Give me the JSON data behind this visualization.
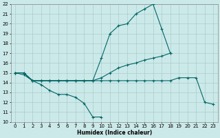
{
  "xlabel": "Humidex (Indice chaleur)",
  "bg_color": "#cce9e9",
  "grid_color": "#aacccc",
  "line_color": "#006666",
  "xlim": [
    -0.5,
    23.5
  ],
  "ylim": [
    10,
    22
  ],
  "xticks": [
    0,
    1,
    2,
    3,
    4,
    5,
    6,
    7,
    8,
    9,
    10,
    11,
    12,
    13,
    14,
    15,
    16,
    17,
    18,
    19,
    20,
    21,
    22,
    23
  ],
  "yticks": [
    10,
    11,
    12,
    13,
    14,
    15,
    16,
    17,
    18,
    19,
    20,
    21,
    22
  ],
  "lines": [
    {
      "x": [
        0,
        1,
        2,
        3,
        4,
        5,
        6,
        7,
        8,
        9,
        10
      ],
      "y": [
        15.0,
        14.8,
        14.2,
        13.8,
        13.2,
        12.8,
        12.8,
        12.5,
        11.9,
        10.5,
        10.5
      ]
    },
    {
      "x": [
        0,
        1,
        2,
        3,
        4,
        5,
        6,
        7,
        8,
        9,
        10,
        11,
        12,
        13,
        14,
        15,
        16,
        17,
        18,
        19,
        20,
        21,
        22,
        23
      ],
      "y": [
        15.0,
        15.0,
        14.2,
        14.2,
        14.2,
        14.2,
        14.2,
        14.2,
        14.2,
        14.2,
        14.2,
        14.2,
        14.2,
        14.2,
        14.2,
        14.2,
        14.2,
        14.2,
        14.2,
        14.5,
        14.5,
        14.5,
        12.0,
        11.8
      ]
    },
    {
      "x": [
        0,
        1,
        2,
        3,
        4,
        5,
        6,
        7,
        8,
        9,
        10,
        11,
        12,
        13,
        14,
        15,
        16,
        17,
        18
      ],
      "y": [
        15.0,
        15.0,
        14.2,
        14.2,
        14.2,
        14.2,
        14.2,
        14.2,
        14.2,
        14.2,
        14.5,
        15.0,
        15.5,
        15.8,
        16.0,
        16.3,
        16.5,
        16.7,
        17.0
      ]
    },
    {
      "x": [
        0,
        1,
        2,
        3,
        4,
        5,
        6,
        7,
        8,
        9,
        10,
        11,
        12,
        13,
        14,
        15,
        16,
        17,
        18
      ],
      "y": [
        15.0,
        15.0,
        14.2,
        14.2,
        14.2,
        14.2,
        14.2,
        14.2,
        14.2,
        14.2,
        16.5,
        19.0,
        19.8,
        20.0,
        21.0,
        21.5,
        22.0,
        19.5,
        17.0
      ]
    }
  ]
}
